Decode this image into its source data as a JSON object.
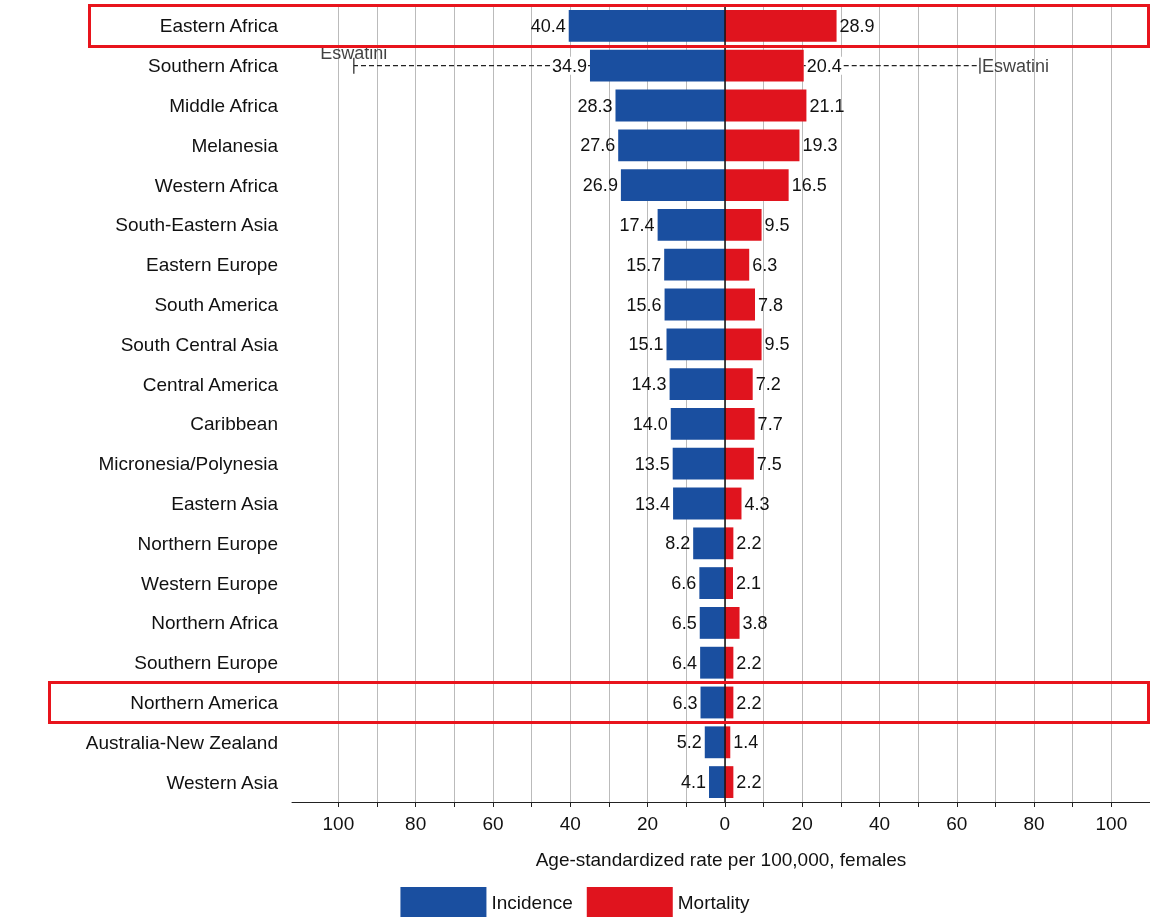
{
  "chart_data": {
    "type": "bar",
    "orientation": "horizontal",
    "categories": [
      "Eastern Africa",
      "Southern Africa",
      "Middle Africa",
      "Melanesia",
      "Western Africa",
      "South-Eastern Asia",
      "Eastern Europe",
      "South America",
      "South Central Asia",
      "Central America",
      "Caribbean",
      "Micronesia/Polynesia",
      "Eastern Asia",
      "Northern Europe",
      "Western Europe",
      "Northern Africa",
      "Southern Europe",
      "Northern America",
      "Australia-New Zealand",
      "Western Asia"
    ],
    "series": [
      {
        "name": "Incidence",
        "color": "#1a4fa0",
        "values": [
          40.4,
          34.9,
          28.3,
          27.6,
          26.9,
          17.4,
          15.7,
          15.6,
          15.1,
          14.3,
          14.0,
          13.5,
          13.4,
          8.2,
          6.6,
          6.5,
          6.4,
          6.3,
          5.2,
          4.1
        ],
        "base": [
          -40.4,
          -34.9,
          -28.3,
          -27.6,
          -26.9,
          -17.4,
          -15.7,
          -15.6,
          -15.1,
          -14.3,
          -14.0,
          -13.5,
          -13.4,
          -8.2,
          -6.6,
          -6.5,
          -6.4,
          -6.3,
          -5.2,
          -4.1
        ],
        "value_labels": [
          "40.4",
          "34.9",
          "28.3",
          "27.6",
          "26.9",
          "17.4",
          "15.7",
          "15.6",
          "15.1",
          "14.3",
          "14.0",
          "13.5",
          "13.4",
          "8.2",
          "6.6",
          "6.5",
          "6.4",
          "6.3",
          "5.2",
          "4.1"
        ],
        "errors": [
          null,
          [
            -96,
            -34.9
          ],
          null,
          null,
          null,
          null,
          null,
          null,
          null,
          null,
          null,
          null,
          null,
          null,
          null,
          null,
          null,
          null,
          null,
          null
        ]
      },
      {
        "name": "Mortality",
        "color": "#e0141e",
        "values": [
          28.9,
          20.4,
          21.1,
          19.3,
          16.5,
          9.5,
          6.3,
          7.8,
          9.5,
          7.2,
          7.7,
          7.5,
          4.3,
          2.2,
          2.1,
          3.8,
          2.2,
          2.2,
          1.4,
          2.2
        ],
        "value_labels": [
          "28.9",
          "20.4",
          "21.1",
          "19.3",
          "16.5",
          "9.5",
          "6.3",
          "7.8",
          "9.5",
          "7.2",
          "7.7",
          "7.5",
          "4.3",
          "2.2",
          "2.1",
          "3.8",
          "2.2",
          "2.2",
          "1.4",
          "2.2"
        ],
        "errors": [
          null,
          [
            20.4,
            66
          ],
          null,
          null,
          null,
          null,
          null,
          null,
          null,
          null,
          null,
          null,
          null,
          null,
          null,
          null,
          null,
          null,
          null,
          null
        ]
      }
    ],
    "xlabel": "Age-standardized rate per 100,000, females",
    "xlim": [
      -112,
      110
    ],
    "xticks": [
      {
        "value": -100,
        "label": "100"
      },
      {
        "value": -90,
        "label": null
      },
      {
        "value": -80,
        "label": "80"
      },
      {
        "value": -70,
        "label": null
      },
      {
        "value": -60,
        "label": "60"
      },
      {
        "value": -50,
        "label": null
      },
      {
        "value": -40,
        "label": "40"
      },
      {
        "value": -30,
        "label": null
      },
      {
        "value": -20,
        "label": "20"
      },
      {
        "value": -10,
        "label": null
      },
      0,
      {
        "value": 10,
        "label": null
      },
      20,
      {
        "value": 30,
        "label": null
      },
      40,
      {
        "value": 50,
        "label": null
      },
      60,
      {
        "value": 70,
        "label": null
      },
      80,
      {
        "value": 90,
        "label": null
      },
      100
    ],
    "annotations": [
      {
        "text": "Eswatini",
        "x": -96,
        "y": "Southern Africa"
      },
      {
        "text": "Eswatini",
        "x": 66,
        "y": "Southern Africa"
      }
    ],
    "stacked": true,
    "grid": "x",
    "legend": "bottom"
  }
}
